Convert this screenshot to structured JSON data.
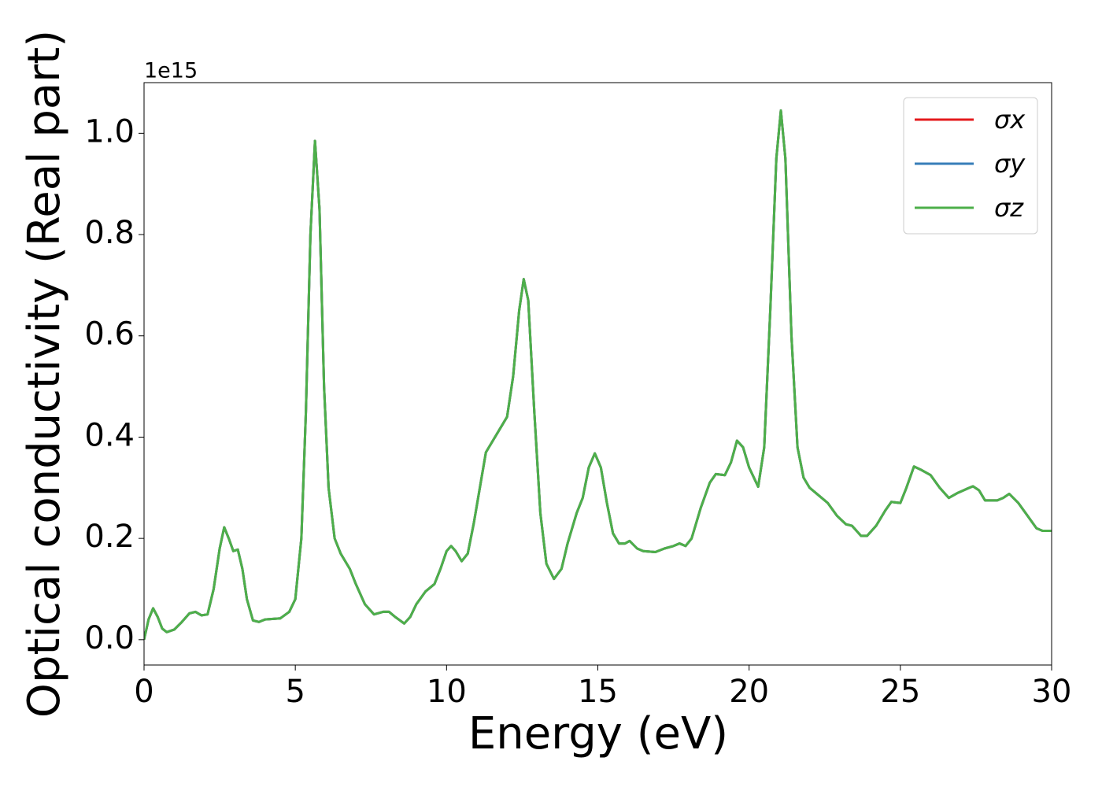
{
  "chart_data": {
    "type": "line",
    "xlabel": "Energy (eV)",
    "ylabel": "Optical conductivity (Real part)",
    "y_offset_text": "1e15",
    "xlim": [
      0,
      30
    ],
    "xticks": [
      0,
      5,
      10,
      15,
      20,
      25,
      30
    ],
    "ylim": [
      -0.05,
      1.1
    ],
    "yticks": [
      {
        "value": 0,
        "label": "0.0"
      },
      0.2,
      0.4,
      0.6,
      0.8,
      {
        "value": 1,
        "label": "1.0"
      }
    ],
    "legend": "upper right",
    "grid": false,
    "x": [
      0,
      0.15,
      0.3,
      0.45,
      0.6,
      0.75,
      1.0,
      1.25,
      1.5,
      1.7,
      1.9,
      2.1,
      2.3,
      2.5,
      2.65,
      2.8,
      2.95,
      3.1,
      3.25,
      3.4,
      3.6,
      3.8,
      4.0,
      4.5,
      4.8,
      5.0,
      5.2,
      5.35,
      5.5,
      5.65,
      5.8,
      5.95,
      6.1,
      6.3,
      6.5,
      6.8,
      7.0,
      7.3,
      7.6,
      7.9,
      8.1,
      8.3,
      8.6,
      8.8,
      9.0,
      9.3,
      9.6,
      9.8,
      10.0,
      10.15,
      10.3,
      10.5,
      10.7,
      10.9,
      11.1,
      11.3,
      11.5,
      11.8,
      12.0,
      12.2,
      12.4,
      12.55,
      12.7,
      12.9,
      13.1,
      13.3,
      13.55,
      13.8,
      14.0,
      14.3,
      14.5,
      14.7,
      14.9,
      15.1,
      15.3,
      15.5,
      15.7,
      15.9,
      16.05,
      16.3,
      16.5,
      16.9,
      17.2,
      17.5,
      17.7,
      17.9,
      18.1,
      18.4,
      18.7,
      18.9,
      19.2,
      19.4,
      19.6,
      19.8,
      20.0,
      20.3,
      20.5,
      20.7,
      20.9,
      21.05,
      21.2,
      21.4,
      21.6,
      21.8,
      22.0,
      22.3,
      22.6,
      22.9,
      23.2,
      23.4,
      23.7,
      23.9,
      24.2,
      24.5,
      24.7,
      25.0,
      25.2,
      25.45,
      25.7,
      26.0,
      26.3,
      26.6,
      26.9,
      27.2,
      27.4,
      27.6,
      27.8,
      28.2,
      28.4,
      28.6,
      28.9,
      29.2,
      29.5,
      29.7,
      30.0
    ],
    "series": [
      {
        "name": "σx",
        "color": "#e41a1c",
        "values": [
          0,
          0.04,
          0.062,
          0.045,
          0.022,
          0.015,
          0.02,
          0.035,
          0.052,
          0.055,
          0.048,
          0.05,
          0.1,
          0.18,
          0.222,
          0.2,
          0.175,
          0.178,
          0.14,
          0.08,
          0.038,
          0.035,
          0.04,
          0.042,
          0.055,
          0.08,
          0.2,
          0.45,
          0.8,
          0.985,
          0.85,
          0.5,
          0.3,
          0.2,
          0.17,
          0.14,
          0.11,
          0.07,
          0.05,
          0.055,
          0.055,
          0.045,
          0.032,
          0.045,
          0.07,
          0.095,
          0.11,
          0.14,
          0.175,
          0.185,
          0.175,
          0.155,
          0.17,
          0.23,
          0.3,
          0.37,
          0.39,
          0.42,
          0.44,
          0.52,
          0.65,
          0.712,
          0.67,
          0.45,
          0.25,
          0.15,
          0.12,
          0.14,
          0.19,
          0.25,
          0.28,
          0.34,
          0.368,
          0.34,
          0.27,
          0.21,
          0.19,
          0.19,
          0.195,
          0.18,
          0.175,
          0.173,
          0.18,
          0.185,
          0.19,
          0.185,
          0.2,
          0.26,
          0.31,
          0.327,
          0.325,
          0.35,
          0.393,
          0.38,
          0.34,
          0.302,
          0.38,
          0.65,
          0.95,
          1.045,
          0.95,
          0.6,
          0.38,
          0.32,
          0.3,
          0.285,
          0.27,
          0.245,
          0.228,
          0.225,
          0.205,
          0.205,
          0.225,
          0.255,
          0.272,
          0.27,
          0.3,
          0.342,
          0.335,
          0.325,
          0.3,
          0.28,
          0.29,
          0.298,
          0.303,
          0.295,
          0.275,
          0.275,
          0.28,
          0.288,
          0.27,
          0.245,
          0.22,
          0.215,
          0.215
        ]
      },
      {
        "name": "σy",
        "color": "#377eb8",
        "values": [
          0,
          0.04,
          0.062,
          0.045,
          0.022,
          0.015,
          0.02,
          0.035,
          0.052,
          0.055,
          0.048,
          0.05,
          0.1,
          0.18,
          0.222,
          0.2,
          0.175,
          0.178,
          0.14,
          0.08,
          0.038,
          0.035,
          0.04,
          0.042,
          0.055,
          0.08,
          0.2,
          0.45,
          0.8,
          0.985,
          0.85,
          0.5,
          0.3,
          0.2,
          0.17,
          0.14,
          0.11,
          0.07,
          0.05,
          0.055,
          0.055,
          0.045,
          0.032,
          0.045,
          0.07,
          0.095,
          0.11,
          0.14,
          0.175,
          0.185,
          0.175,
          0.155,
          0.17,
          0.23,
          0.3,
          0.37,
          0.39,
          0.42,
          0.44,
          0.52,
          0.65,
          0.712,
          0.67,
          0.45,
          0.25,
          0.15,
          0.12,
          0.14,
          0.19,
          0.25,
          0.28,
          0.34,
          0.368,
          0.34,
          0.27,
          0.21,
          0.19,
          0.19,
          0.195,
          0.18,
          0.175,
          0.173,
          0.18,
          0.185,
          0.19,
          0.185,
          0.2,
          0.26,
          0.31,
          0.327,
          0.325,
          0.35,
          0.393,
          0.38,
          0.34,
          0.302,
          0.38,
          0.65,
          0.95,
          1.045,
          0.95,
          0.6,
          0.38,
          0.32,
          0.3,
          0.285,
          0.27,
          0.245,
          0.228,
          0.225,
          0.205,
          0.205,
          0.225,
          0.255,
          0.272,
          0.27,
          0.3,
          0.342,
          0.335,
          0.325,
          0.3,
          0.28,
          0.29,
          0.298,
          0.303,
          0.295,
          0.275,
          0.275,
          0.28,
          0.288,
          0.27,
          0.245,
          0.22,
          0.215,
          0.215
        ]
      },
      {
        "name": "σz",
        "color": "#4daf4a",
        "values": [
          0,
          0.04,
          0.062,
          0.045,
          0.022,
          0.015,
          0.02,
          0.035,
          0.052,
          0.055,
          0.048,
          0.05,
          0.1,
          0.18,
          0.222,
          0.2,
          0.175,
          0.178,
          0.14,
          0.08,
          0.038,
          0.035,
          0.04,
          0.042,
          0.055,
          0.08,
          0.2,
          0.45,
          0.8,
          0.985,
          0.85,
          0.5,
          0.3,
          0.2,
          0.17,
          0.14,
          0.11,
          0.07,
          0.05,
          0.055,
          0.055,
          0.045,
          0.032,
          0.045,
          0.07,
          0.095,
          0.11,
          0.14,
          0.175,
          0.185,
          0.175,
          0.155,
          0.17,
          0.23,
          0.3,
          0.37,
          0.39,
          0.42,
          0.44,
          0.52,
          0.65,
          0.712,
          0.67,
          0.45,
          0.25,
          0.15,
          0.12,
          0.14,
          0.19,
          0.25,
          0.28,
          0.34,
          0.368,
          0.34,
          0.27,
          0.21,
          0.19,
          0.19,
          0.195,
          0.18,
          0.175,
          0.173,
          0.18,
          0.185,
          0.19,
          0.185,
          0.2,
          0.26,
          0.31,
          0.327,
          0.325,
          0.35,
          0.393,
          0.38,
          0.34,
          0.302,
          0.38,
          0.65,
          0.95,
          1.045,
          0.95,
          0.6,
          0.38,
          0.32,
          0.3,
          0.285,
          0.27,
          0.245,
          0.228,
          0.225,
          0.205,
          0.205,
          0.225,
          0.255,
          0.272,
          0.27,
          0.3,
          0.342,
          0.335,
          0.325,
          0.3,
          0.28,
          0.29,
          0.298,
          0.303,
          0.295,
          0.275,
          0.275,
          0.28,
          0.288,
          0.27,
          0.245,
          0.22,
          0.215,
          0.215
        ]
      }
    ]
  }
}
